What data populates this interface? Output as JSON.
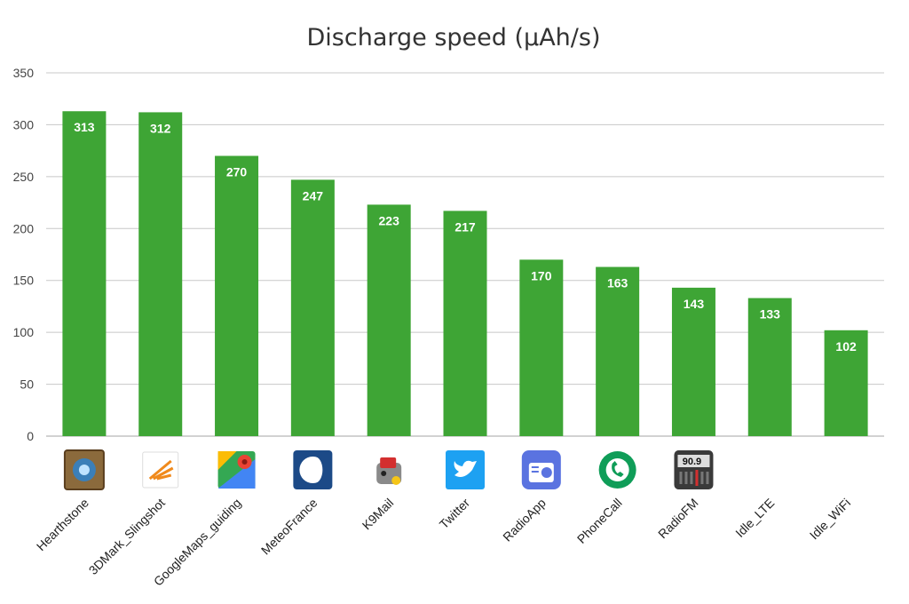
{
  "chart_data": {
    "type": "bar",
    "title": "Discharge speed (µAh/s)",
    "xlabel": "",
    "ylabel": "",
    "categories": [
      "Hearthstone",
      "3DMark_Slingshot",
      "GoogleMaps_guiding",
      "MeteoFrance",
      "K9Mail",
      "Twitter",
      "RadioApp",
      "PhoneCall",
      "RadioFM",
      "Idle_LTE",
      "Idle_WiFi"
    ],
    "values": [
      313,
      312,
      270,
      247,
      223,
      217,
      170,
      163,
      143,
      133,
      102
    ],
    "ylim": [
      0,
      350
    ],
    "yticks": [
      "0",
      "50",
      "100",
      "150",
      "200",
      "250",
      "300",
      "350"
    ],
    "grid": true,
    "legend": "none",
    "bar_color": "#3ea535",
    "data_label_color": "#ffffff"
  },
  "category_icons": [
    {
      "name": "hearthstone-icon",
      "bg": "#6a4a2a"
    },
    {
      "name": "3dmark-icon",
      "bg": "#ffffff"
    },
    {
      "name": "google-maps-icon",
      "bg": "#f1f1f1"
    },
    {
      "name": "meteofrance-icon",
      "bg": "#1c4a87"
    },
    {
      "name": "k9mail-icon",
      "bg": "#ffffff"
    },
    {
      "name": "twitter-icon",
      "bg": "#1da1f2"
    },
    {
      "name": "radio-app-icon",
      "bg": "#5a73e0"
    },
    {
      "name": "phone-call-icon",
      "bg": "#0f9d58"
    },
    {
      "name": "radio-fm-icon",
      "bg": "#3a3a3a",
      "text": "90.9"
    },
    {
      "name": "idle-lte-icon",
      "bg": "none"
    },
    {
      "name": "idle-wifi-icon",
      "bg": "none"
    }
  ]
}
